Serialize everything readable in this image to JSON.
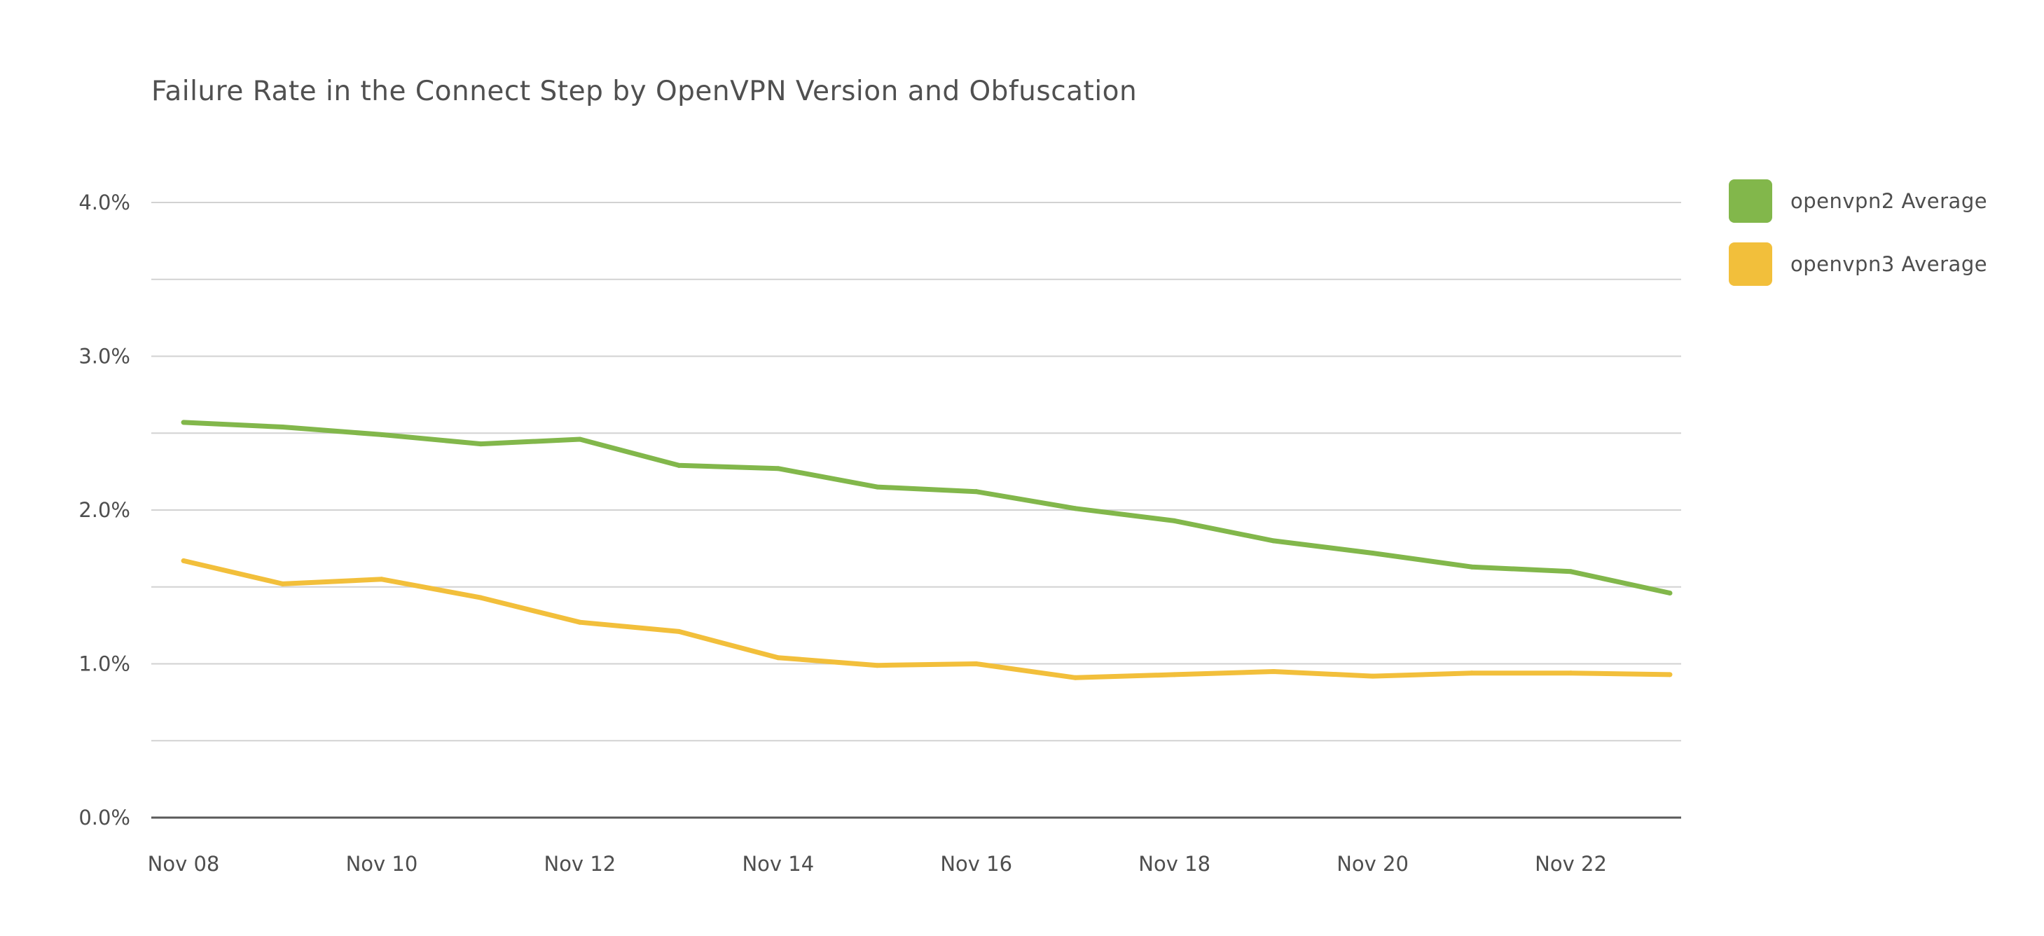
{
  "chart_data": {
    "type": "line",
    "title": "Failure Rate in the Connect Step by OpenVPN Version and Obfuscation",
    "xlabel": "",
    "ylabel": "",
    "x": [
      "Nov 08",
      "Nov 09",
      "Nov 10",
      "Nov 11",
      "Nov 12",
      "Nov 13",
      "Nov 14",
      "Nov 15",
      "Nov 16",
      "Nov 17",
      "Nov 18",
      "Nov 19",
      "Nov 20",
      "Nov 21",
      "Nov 22",
      "Nov 23"
    ],
    "x_tick_labels": [
      "Nov 08",
      "Nov 10",
      "Nov 12",
      "Nov 14",
      "Nov 16",
      "Nov 18",
      "Nov 20",
      "Nov 22"
    ],
    "y_tick_labels": [
      "0.0%",
      "1.0%",
      "2.0%",
      "3.0%",
      "4.0%"
    ],
    "y_ticks": [
      0,
      1,
      2,
      3,
      4
    ],
    "ylim": [
      0,
      4
    ],
    "y_unit": "%",
    "grid": true,
    "legend_position": "right",
    "series": [
      {
        "name": "openvpn2 Average",
        "color": "#82b74b",
        "values": [
          2.57,
          2.54,
          2.49,
          2.43,
          2.46,
          2.29,
          2.27,
          2.15,
          2.12,
          2.01,
          1.93,
          1.8,
          1.72,
          1.63,
          1.6,
          1.46
        ]
      },
      {
        "name": "openvpn3 Average",
        "color": "#f2bf3b",
        "values": [
          1.67,
          1.52,
          1.55,
          1.43,
          1.27,
          1.21,
          1.04,
          0.99,
          1.0,
          0.91,
          0.93,
          0.95,
          0.92,
          0.94,
          0.94,
          0.93
        ]
      }
    ],
    "colors": {
      "grid": "#d2d2d2",
      "axis": "#5a5a5a",
      "text": "#4e4e4e"
    }
  }
}
